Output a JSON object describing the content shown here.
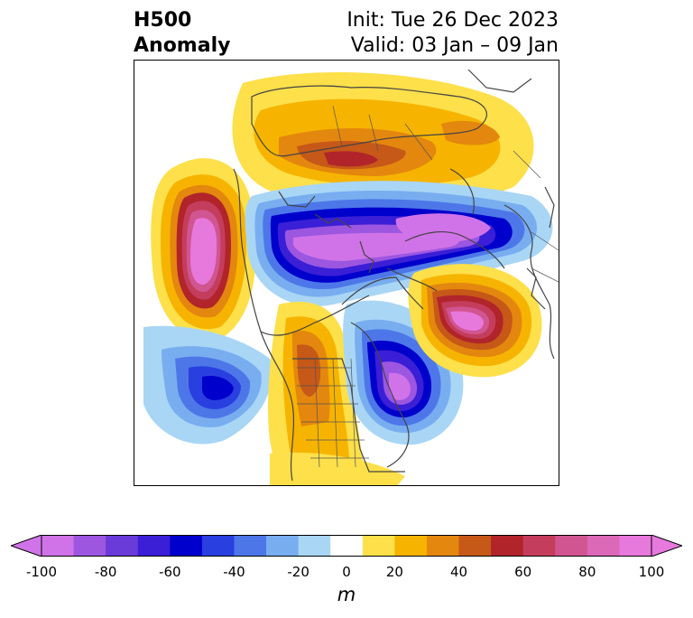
{
  "title": {
    "left_line1": "H500",
    "left_line2": "Anomaly",
    "right_line1": "Init: Tue 26 Dec 2023",
    "right_line2": "Valid: 03 Jan – 09 Jan"
  },
  "colorbar": {
    "unit": "m",
    "ticks": [
      "-100",
      "-80",
      "-60",
      "-40",
      "-20",
      "0",
      "20",
      "40",
      "60",
      "80",
      "100"
    ],
    "levels": [
      -100,
      -90,
      -80,
      -70,
      -60,
      -50,
      -40,
      -30,
      -20,
      -10,
      10,
      20,
      30,
      40,
      50,
      60,
      70,
      80,
      90,
      100
    ],
    "colors": [
      "#d073e8",
      "#9c56e0",
      "#6a3bd8",
      "#3a1fd6",
      "#0000cc",
      "#2a3fe0",
      "#4d77e8",
      "#78aef0",
      "#a9d6f5",
      "#ffffff",
      "#fde04a",
      "#f6b400",
      "#e4870e",
      "#c65818",
      "#b0242a",
      "#c43d5c",
      "#d05590",
      "#dc68b8",
      "#e778dc"
    ],
    "extend_low_color": "#d073e8",
    "extend_high_color": "#e778dc"
  }
}
